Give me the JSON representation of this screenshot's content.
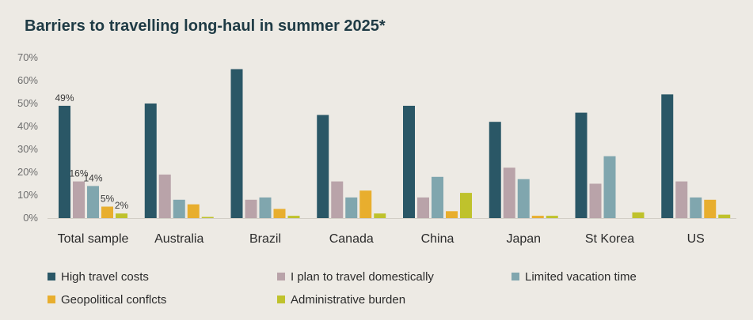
{
  "chart_data": {
    "type": "bar",
    "title": "Barriers to travelling long-haul in summer 2025*",
    "categories": [
      "Total sample",
      "Australia",
      "Brazil",
      "Canada",
      "China",
      "Japan",
      "St Korea",
      "US"
    ],
    "series": [
      {
        "name": "High travel costs",
        "color": "#2a5766",
        "values": [
          49,
          50,
          65,
          45,
          49,
          42,
          46,
          54
        ]
      },
      {
        "name": "I plan to travel domestically",
        "color": "#b9a3a9",
        "values": [
          16,
          19,
          8,
          16,
          9,
          22,
          15,
          16
        ]
      },
      {
        "name": "Limited vacation time",
        "color": "#80a6ae",
        "values": [
          14,
          8,
          9,
          9,
          18,
          17,
          27,
          9
        ]
      },
      {
        "name": "Geopolitical conflcts",
        "color": "#e8ae2e",
        "values": [
          5,
          6,
          4,
          12,
          3,
          1,
          0,
          8
        ]
      },
      {
        "name": "Administrative burden",
        "color": "#bfc22c",
        "values": [
          2,
          0.5,
          1,
          2,
          11,
          1,
          2.5,
          1.5
        ]
      }
    ],
    "data_labels": [
      {
        "category": "Total sample",
        "series": "High travel costs",
        "text": "49%"
      },
      {
        "category": "Total sample",
        "series": "I plan to travel domestically",
        "text": "16%"
      },
      {
        "category": "Total sample",
        "series": "Limited vacation time",
        "text": "14%"
      },
      {
        "category": "Total sample",
        "series": "Geopolitical conflcts",
        "text": "5%"
      },
      {
        "category": "Total sample",
        "series": "Administrative burden",
        "text": "2%"
      }
    ],
    "ylim": [
      0,
      70
    ],
    "yticks": [
      0,
      10,
      20,
      30,
      40,
      50,
      60,
      70
    ],
    "ytick_labels": [
      "0%",
      "10%",
      "20%",
      "30%",
      "40%",
      "50%",
      "60%",
      "70%"
    ],
    "grid": false,
    "legend": "bottom"
  }
}
